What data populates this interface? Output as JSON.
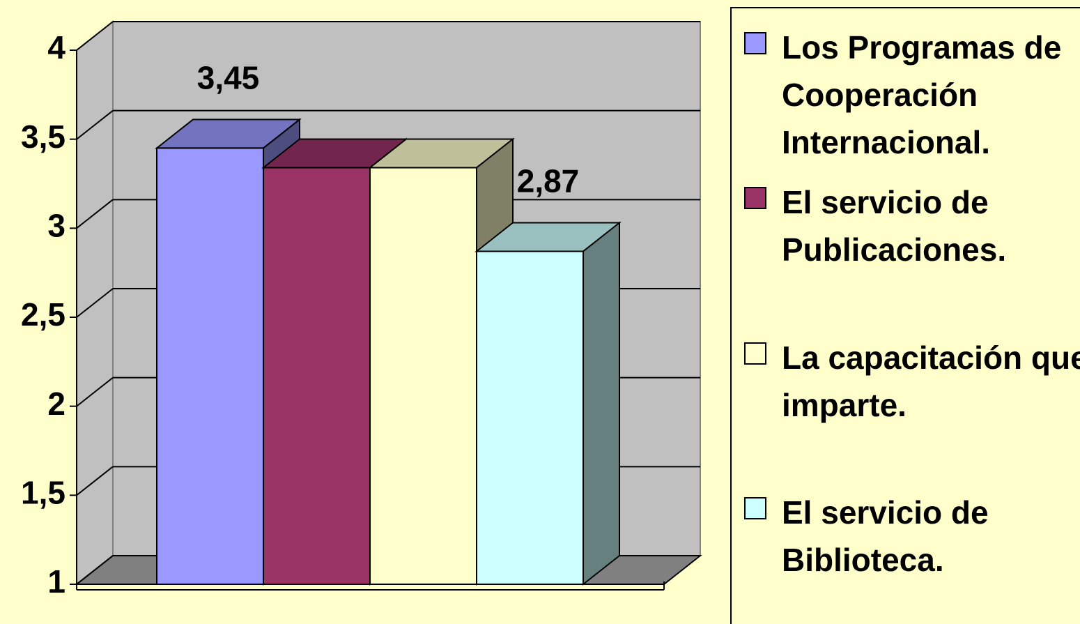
{
  "chart_data": {
    "type": "bar3d",
    "series": [
      {
        "name": "Los Programas de Cooperación Internacional.",
        "color": "#9999ff",
        "values": [
          3.45
        ],
        "value_labels": [
          "3,45"
        ]
      },
      {
        "name": "El servicio de Publicaciones.",
        "color": "#993366",
        "values": [
          3.34
        ]
      },
      {
        "name": "La capacitación que imparte.",
        "color": "#ffffcc",
        "values": [
          3.34
        ]
      },
      {
        "name": "El servicio de Biblioteca.",
        "color": "#ccffff",
        "values": [
          2.87
        ],
        "value_labels": [
          "2,87"
        ]
      }
    ],
    "ylim": [
      1,
      4
    ],
    "yticks": [
      1,
      {
        "value": 1.5,
        "label": "1,5"
      },
      2,
      {
        "value": 2.5,
        "label": "2,5"
      },
      3,
      {
        "value": 3.5,
        "label": "3,5"
      },
      4
    ],
    "grid": true,
    "legend": "right"
  }
}
